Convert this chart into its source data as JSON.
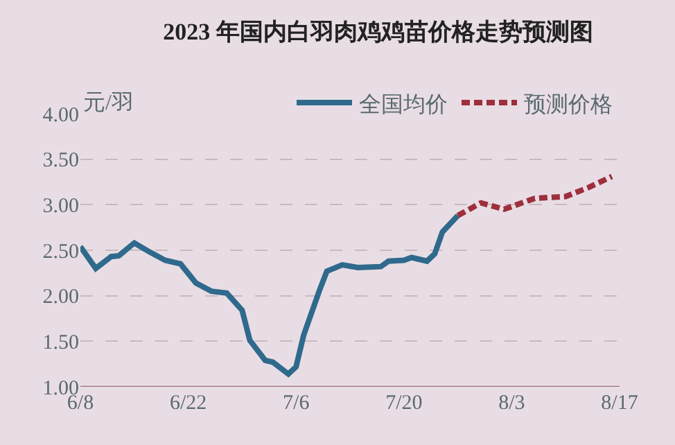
{
  "chart_data": {
    "type": "line",
    "title": "2023 年国内白羽肉鸡鸡苗价格走势预测图",
    "ylabel": "元/羽",
    "xlim": [
      "2023-06-08",
      "2023-08-17"
    ],
    "xticks": [
      {
        "value": "2023-06-08",
        "label": "6/8"
      },
      {
        "value": "2023-06-22",
        "label": "6/22"
      },
      {
        "value": "2023-07-06",
        "label": "7/6"
      },
      {
        "value": "2023-07-20",
        "label": "7/20"
      },
      {
        "value": "2023-08-03",
        "label": "8/3"
      },
      {
        "value": "2023-08-17",
        "label": "8/17"
      }
    ],
    "ylim": [
      1,
      4
    ],
    "yticks": [
      {
        "value": 1,
        "label": "1.00"
      },
      {
        "value": 1.5,
        "label": "1.50"
      },
      {
        "value": 2,
        "label": "2.00"
      },
      {
        "value": 2.5,
        "label": "2.50"
      },
      {
        "value": 3,
        "label": "3.00"
      },
      {
        "value": 3.5,
        "label": "3.50"
      },
      {
        "value": 4,
        "label": "4.00"
      }
    ],
    "grid": "y",
    "legend": "top right",
    "marker": "none",
    "series": [
      {
        "name": "全国均价",
        "color": "#2f6a8c",
        "line_style": "solid",
        "x": [
          "2023-06-08",
          "2023-06-10",
          "2023-06-12",
          "2023-06-13",
          "2023-06-15",
          "2023-06-17",
          "2023-06-19",
          "2023-06-21",
          "2023-06-23",
          "2023-06-25",
          "2023-06-27",
          "2023-06-29",
          "2023-06-30",
          "2023-07-02",
          "2023-07-03",
          "2023-07-05",
          "2023-07-06",
          "2023-07-07",
          "2023-07-09",
          "2023-07-10",
          "2023-07-12",
          "2023-07-14",
          "2023-07-17",
          "2023-07-18",
          "2023-07-20",
          "2023-07-21",
          "2023-07-23",
          "2023-07-24",
          "2023-07-25",
          "2023-07-27"
        ],
        "values": [
          2.54,
          2.3,
          2.43,
          2.44,
          2.58,
          2.48,
          2.39,
          2.35,
          2.14,
          2.05,
          2.03,
          1.84,
          1.51,
          1.29,
          1.27,
          1.14,
          1.22,
          1.57,
          2.05,
          2.27,
          2.34,
          2.31,
          2.32,
          2.38,
          2.39,
          2.42,
          2.38,
          2.46,
          2.7,
          2.88
        ]
      },
      {
        "name": "预测价格",
        "color": "#9e2f3c",
        "line_style": "dashed",
        "x": [
          "2023-07-27",
          "2023-07-30",
          "2023-08-02",
          "2023-08-06",
          "2023-08-10",
          "2023-08-13",
          "2023-08-16"
        ],
        "values": [
          2.88,
          3.02,
          2.95,
          3.07,
          3.09,
          3.19,
          3.31
        ]
      }
    ]
  }
}
